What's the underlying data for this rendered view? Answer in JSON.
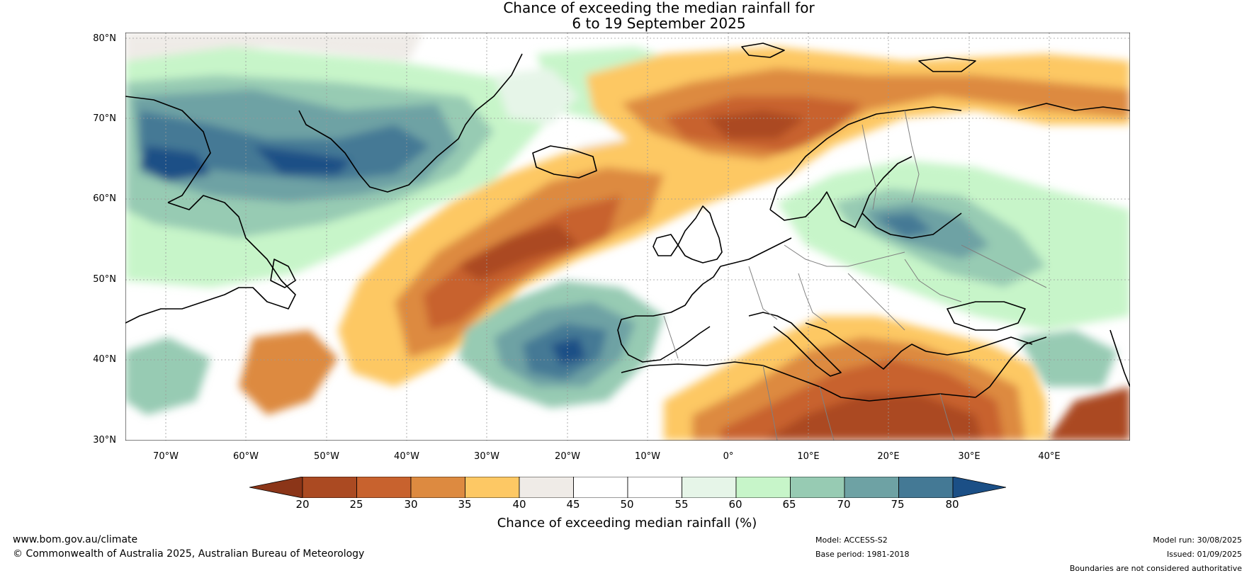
{
  "title": {
    "line1": "Chance of exceeding the median rainfall for",
    "line2": "6 to 19 September 2025"
  },
  "map": {
    "lat_labels": [
      "80°N",
      "70°N",
      "60°N",
      "50°N",
      "40°N",
      "30°N"
    ],
    "lon_labels": [
      "70°W",
      "60°W",
      "50°W",
      "40°W",
      "30°W",
      "20°W",
      "10°W",
      "0°",
      "10°E",
      "20°E",
      "30°E",
      "40°E"
    ],
    "colors": {
      "ocean_base": "#ffffff",
      "coast": "#000000",
      "borders": "#808080",
      "grid": "#999999"
    }
  },
  "colorbar": {
    "ticks": [
      "20",
      "25",
      "30",
      "35",
      "40",
      "45",
      "50",
      "55",
      "60",
      "65",
      "70",
      "75",
      "80"
    ],
    "colors": [
      "#8b3518",
      "#ab4a22",
      "#c8622e",
      "#dd8a40",
      "#fdc864",
      "#efebe7",
      "#ffffff",
      "#ffffff",
      "#e6f5e8",
      "#c7f5c9",
      "#97cbb3",
      "#6ea2a4",
      "#447995",
      "#1b4f86"
    ],
    "label": "Chance of exceeding median rainfall (%)"
  },
  "footer": {
    "url": "www.bom.gov.au/climate",
    "copyright": "© Commonwealth of Australia 2025, Australian Bureau of Meteorology",
    "model": "Model: ACCESS-S2",
    "base_period": "Base period: 1981-2018",
    "model_run": "Model run: 30/08/2025",
    "issued": "Issued: 01/09/2025",
    "disclaimer": "Boundaries are not considered authoritative"
  }
}
